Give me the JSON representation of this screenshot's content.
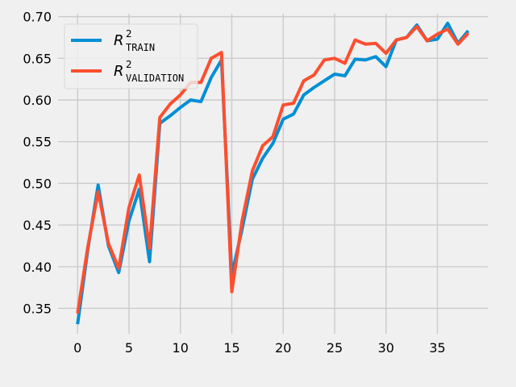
{
  "chart_data": {
    "type": "line",
    "x": [
      0,
      1,
      2,
      3,
      4,
      5,
      6,
      7,
      8,
      9,
      10,
      11,
      12,
      13,
      14,
      15,
      16,
      17,
      18,
      19,
      20,
      21,
      22,
      23,
      24,
      25,
      26,
      27,
      28,
      29,
      30,
      31,
      32,
      33,
      34,
      35,
      36,
      37,
      38
    ],
    "series": [
      {
        "name": "R2 TRAIN",
        "name_main": "R",
        "name_sup": "2",
        "name_sub": "TRAIN",
        "color": "#008fd5",
        "values": [
          0.331,
          0.421,
          0.498,
          0.425,
          0.393,
          0.455,
          0.493,
          0.406,
          0.572,
          0.581,
          0.591,
          0.6,
          0.598,
          0.627,
          0.648,
          0.39,
          0.445,
          0.505,
          0.53,
          0.548,
          0.577,
          0.583,
          0.606,
          0.615,
          0.623,
          0.631,
          0.629,
          0.649,
          0.648,
          0.652,
          0.64,
          0.672,
          0.675,
          0.69,
          0.671,
          0.673,
          0.692,
          0.668,
          0.683
        ]
      },
      {
        "name": "R2 VALIDATION",
        "name_main": "R",
        "name_sup": "2",
        "name_sub": "VALIDATION",
        "color": "#fc4f30",
        "values": [
          0.344,
          0.424,
          0.49,
          0.428,
          0.398,
          0.471,
          0.51,
          0.422,
          0.579,
          0.595,
          0.606,
          0.621,
          0.621,
          0.65,
          0.657,
          0.37,
          0.455,
          0.515,
          0.545,
          0.556,
          0.594,
          0.596,
          0.623,
          0.63,
          0.648,
          0.65,
          0.644,
          0.672,
          0.667,
          0.668,
          0.656,
          0.672,
          0.675,
          0.688,
          0.671,
          0.679,
          0.685,
          0.667,
          0.68
        ]
      }
    ],
    "xticks": [
      0,
      5,
      10,
      15,
      20,
      25,
      30,
      35
    ],
    "yticks": [
      0.35,
      0.4,
      0.45,
      0.5,
      0.55,
      0.6,
      0.65,
      0.7
    ],
    "xlim": [
      -1.9,
      39.9
    ],
    "ylim": [
      0.3195,
      0.7035
    ],
    "grid": true,
    "legend": "upper-left",
    "background": "#f0f0f0",
    "gridcolor": "#cbcbcb"
  }
}
